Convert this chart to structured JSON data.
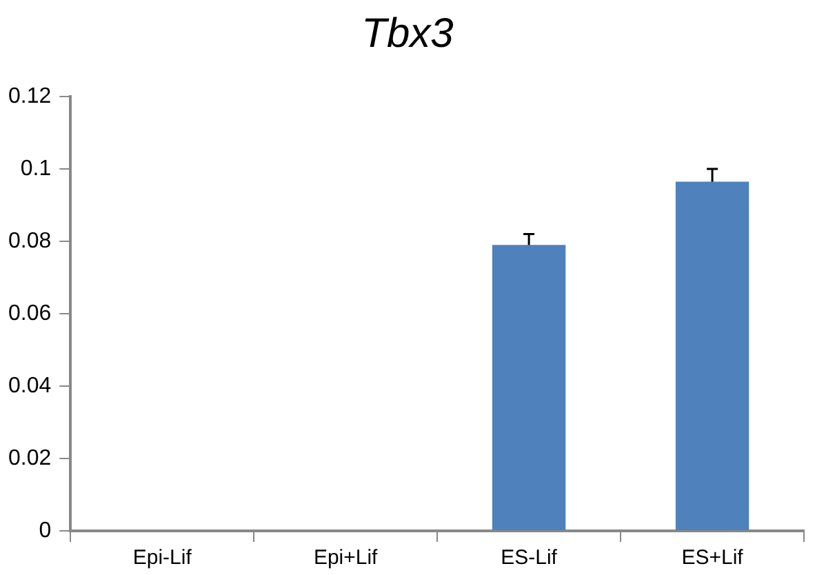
{
  "chart_data": {
    "type": "bar",
    "title": "Tbx3",
    "categories": [
      "Epi-Lif",
      "Epi+Lif",
      "ES-Lif",
      "ES+Lif"
    ],
    "values": [
      0,
      0,
      0.079,
      0.0965
    ],
    "errors": [
      null,
      null,
      0.003,
      0.0035
    ],
    "color": "#4f81bd",
    "ylim": [
      0,
      0.12
    ],
    "yticks": [
      0,
      0.02,
      0.04,
      0.06,
      0.08,
      0.1,
      0.12
    ],
    "grid": false,
    "legend": false
  }
}
